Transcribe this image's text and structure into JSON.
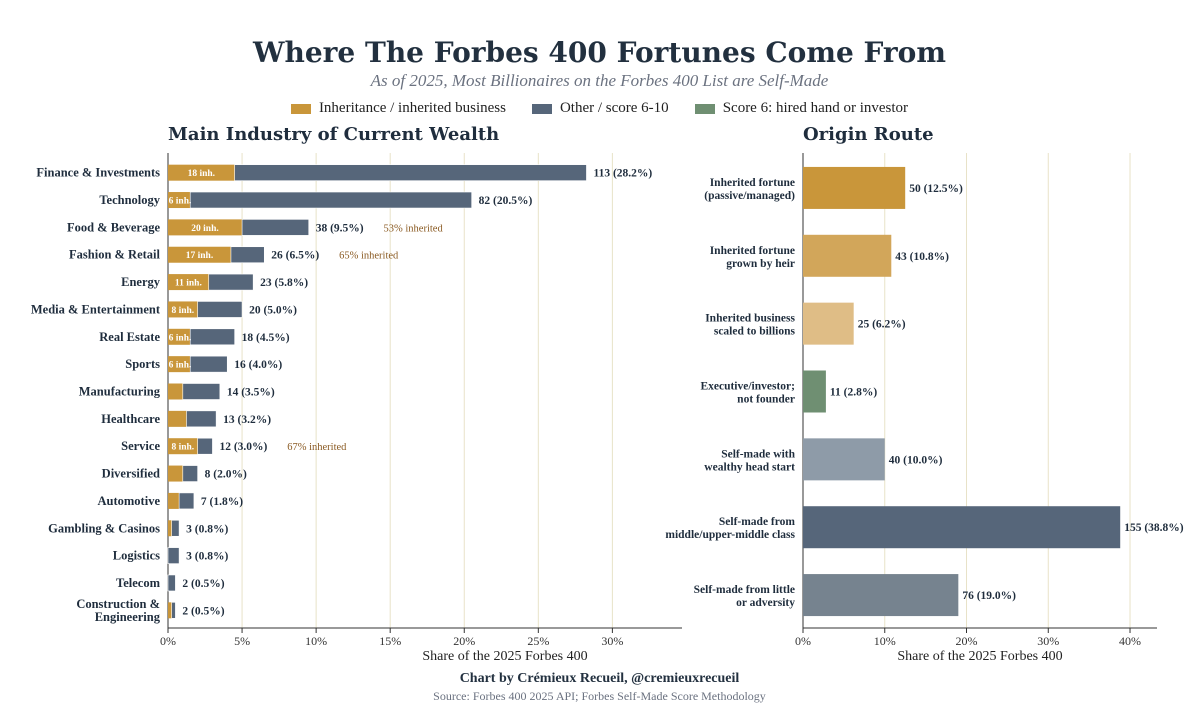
{
  "title": "Where The Forbes 400 Fortunes Come From",
  "subtitle": "As of 2025, Most Billionaires on the Forbes 400 List are Self-Made",
  "legend": {
    "inheritance": "Inheritance / inherited business",
    "other": "Other / score 6-10",
    "score6": "Score 6: hired hand or investor"
  },
  "colors": {
    "inheritance": "#c9963a",
    "other": "#56667a",
    "score6": "#6f8f72",
    "grid": "#e8e2c8",
    "inherited_note": "#8a5a22"
  },
  "footer": {
    "credit": "Chart by Crémieux Recueil, @cremieuxrecueil",
    "source": "Source: Forbes 400 2025 API; Forbes Self-Made Score Methodology"
  },
  "chart_data": [
    {
      "type": "bar",
      "orientation": "horizontal",
      "stacked": true,
      "title": "Main Industry of Current Wealth",
      "xlabel": "Share of the 2025 Forbes 400",
      "xlim": [
        0,
        34.7
      ],
      "xticks": [
        "0%",
        "5%",
        "10%",
        "15%",
        "20%",
        "25%",
        "30%"
      ],
      "grid": "vertical",
      "categories": [
        "Finance & Investments",
        "Technology",
        "Food & Beverage",
        "Fashion & Retail",
        "Energy",
        "Media & Entertainment",
        "Real Estate",
        "Sports",
        "Manufacturing",
        "Healthcare",
        "Service",
        "Diversified",
        "Automotive",
        "Gambling & Casinos",
        "Logistics",
        "Telecom",
        "Construction & Engineering"
      ],
      "series": [
        {
          "name": "Inheritance / inherited business",
          "values": [
            4.5,
            1.5,
            5.0,
            4.25,
            2.75,
            2.0,
            1.5,
            1.5,
            1.0,
            1.25,
            2.0,
            1.0,
            0.75,
            0.25,
            0,
            0,
            0.25
          ]
        },
        {
          "name": "Other / score 6-10",
          "values": [
            23.75,
            19.0,
            4.5,
            2.25,
            3.0,
            3.0,
            3.0,
            2.5,
            2.5,
            2.0,
            1.0,
            1.0,
            1.0,
            0.5,
            0.75,
            0.5,
            0.25
          ]
        }
      ],
      "inherited_labels": [
        "18 inh.",
        "6 inh.",
        "20 inh.",
        "17 inh.",
        "11 inh.",
        "8 inh.",
        "6 inh.",
        "6 inh.",
        "",
        "",
        "8 inh.",
        "",
        "",
        "",
        "",
        "",
        ""
      ],
      "total_labels": [
        "113 (28.2%)",
        "82 (20.5%)",
        "38 (9.5%)",
        "26 (6.5%)",
        "23 (5.8%)",
        "20 (5.0%)",
        "18 (4.5%)",
        "16 (4.0%)",
        "14 (3.5%)",
        "13 (3.2%)",
        "12 (3.0%)",
        "8 (2.0%)",
        "7 (1.8%)",
        "3 (0.8%)",
        "3 (0.8%)",
        "2 (0.5%)",
        "2 (0.5%)"
      ],
      "annotations": [
        "",
        "",
        "53% inherited",
        "65% inherited",
        "",
        "",
        "",
        "",
        "",
        "",
        "67% inherited",
        "",
        "",
        "",
        "",
        "",
        ""
      ]
    },
    {
      "type": "bar",
      "orientation": "horizontal",
      "title": "Origin Route",
      "xlabel": "Share of the 2025 Forbes 400",
      "xlim": [
        0,
        43.3
      ],
      "xticks": [
        "0%",
        "10%",
        "20%",
        "30%",
        "40%"
      ],
      "grid": "vertical",
      "categories": [
        [
          "Inherited fortune",
          "(passive/managed)"
        ],
        [
          "Inherited fortune",
          "grown by heir"
        ],
        [
          "Inherited business",
          "scaled to billions"
        ],
        [
          "Executive/investor;",
          "not founder"
        ],
        [
          "Self-made with",
          "wealthy head start"
        ],
        [
          "Self-made from",
          "middle/upper-middle class"
        ],
        [
          "Self-made from little",
          "or adversity"
        ]
      ],
      "values": [
        12.5,
        10.8,
        6.2,
        2.8,
        10.0,
        38.8,
        19.0
      ],
      "value_labels": [
        "50 (12.5%)",
        "43 (10.8%)",
        "25 (6.2%)",
        "11 (2.8%)",
        "40 (10.0%)",
        "155 (38.8%)",
        "76 (19.0%)"
      ],
      "bar_colors": [
        "#c9963a",
        "#d2a65a",
        "#dfbd86",
        "#6f8f72",
        "#8e9ba8",
        "#56667a",
        "#76838f"
      ]
    }
  ]
}
